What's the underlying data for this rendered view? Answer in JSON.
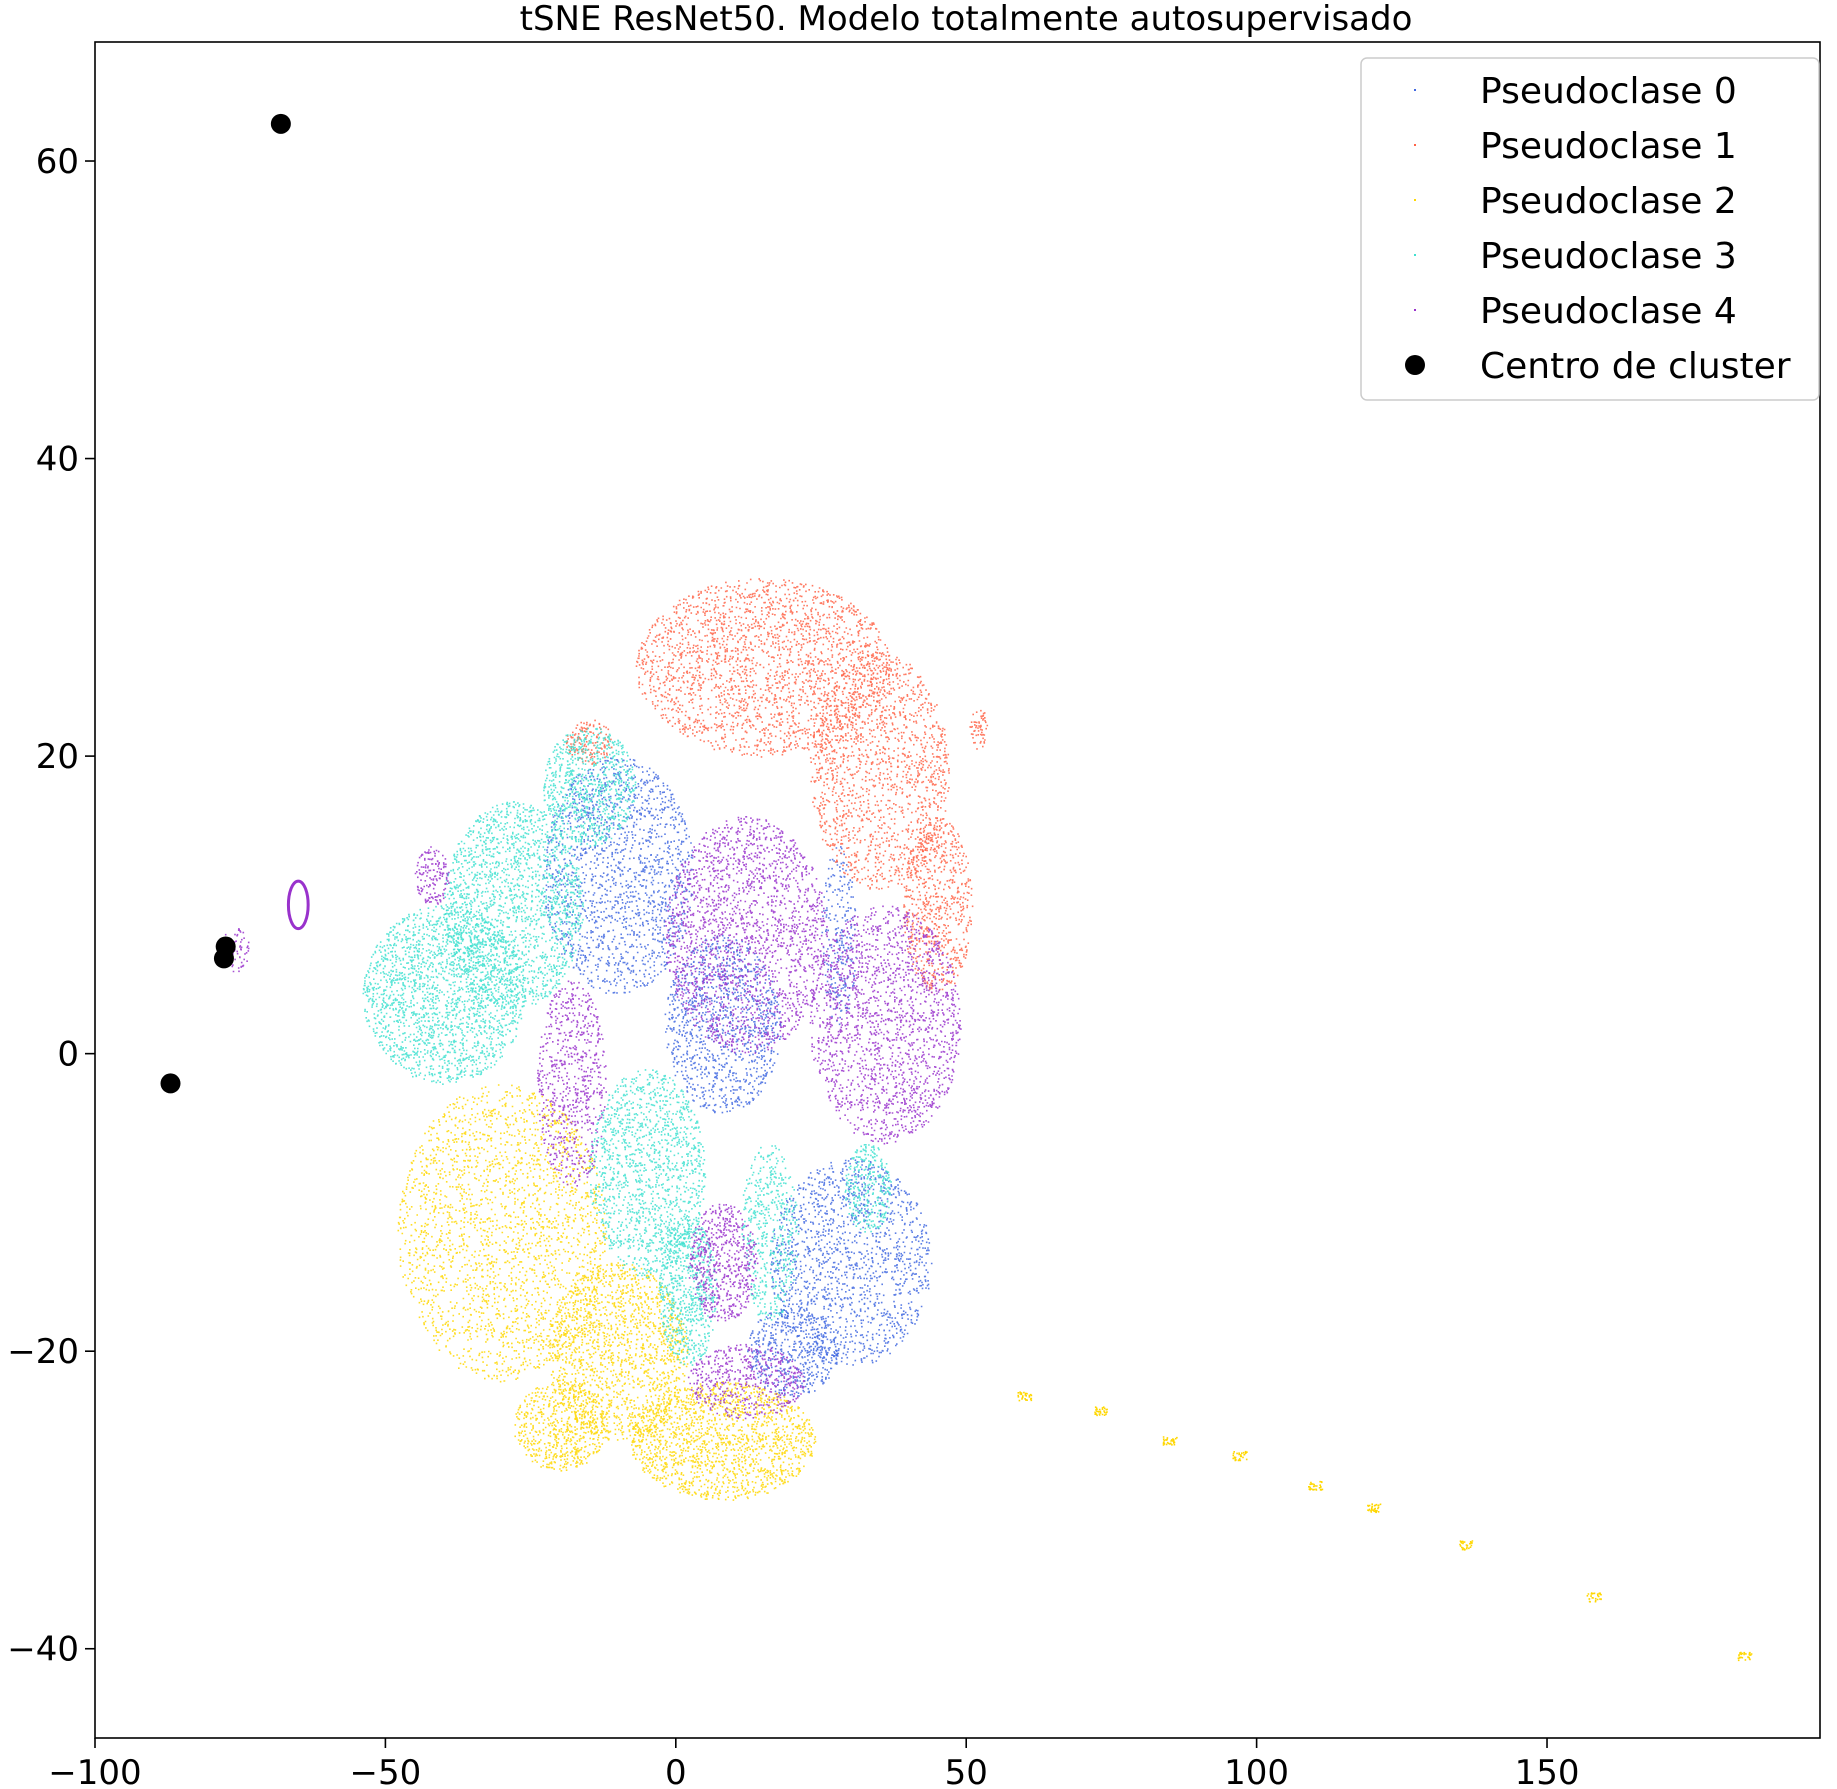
{
  "chart_data": {
    "type": "scatter",
    "title": "tSNE ResNet50. Modelo totalmente autosupervisado",
    "xlabel": "",
    "ylabel": "",
    "xlim": [
      -100,
      197
    ],
    "ylim": [
      -46,
      68
    ],
    "x_ticks": [
      {
        "value": -100,
        "label": "−100"
      },
      {
        "value": -50,
        "label": "−50"
      },
      {
        "value": 0,
        "label": "0"
      },
      {
        "value": 50,
        "label": "50"
      },
      {
        "value": 100,
        "label": "100"
      },
      {
        "value": 150,
        "label": "150"
      }
    ],
    "y_ticks": [
      {
        "value": -40,
        "label": "−40"
      },
      {
        "value": -20,
        "label": "−20"
      },
      {
        "value": 0,
        "label": "0"
      },
      {
        "value": 20,
        "label": "20"
      },
      {
        "value": 40,
        "label": "40"
      },
      {
        "value": 60,
        "label": "60"
      }
    ],
    "grid": false,
    "legend_position": "top-right",
    "series": [
      {
        "name": "Pseudoclase 0",
        "color": "#4169e1",
        "regions": [
          {
            "cx": -10,
            "cy": 12,
            "rx": 13,
            "ry": 8,
            "density": 1600
          },
          {
            "cx": 8,
            "cy": 2,
            "rx": 10,
            "ry": 6,
            "density": 1100
          },
          {
            "cx": 30,
            "cy": -14,
            "rx": 14,
            "ry": 7,
            "density": 1500
          },
          {
            "cx": 20,
            "cy": -20,
            "rx": 8,
            "ry": 3,
            "density": 500
          },
          {
            "cx": 28,
            "cy": 8,
            "rx": 3,
            "ry": 6,
            "density": 250
          }
        ]
      },
      {
        "name": "Pseudoclase 1",
        "color": "#ff6347",
        "regions": [
          {
            "cx": 15,
            "cy": 26,
            "rx": 22,
            "ry": 6,
            "density": 2200
          },
          {
            "cx": 35,
            "cy": 19,
            "rx": 12,
            "ry": 8,
            "density": 1500
          },
          {
            "cx": 45,
            "cy": 10,
            "rx": 6,
            "ry": 6,
            "density": 700
          },
          {
            "cx": -15,
            "cy": 21,
            "rx": 4,
            "ry": 1.5,
            "density": 150
          },
          {
            "cx": 52,
            "cy": 22,
            "rx": 1.5,
            "ry": 1.5,
            "density": 60
          }
        ]
      },
      {
        "name": "Pseudoclase 2",
        "color": "#ffd700",
        "regions": [
          {
            "cx": -30,
            "cy": -12,
            "rx": 18,
            "ry": 10,
            "density": 2200
          },
          {
            "cx": -10,
            "cy": -20,
            "rx": 12,
            "ry": 6,
            "density": 1500
          },
          {
            "cx": 8,
            "cy": -26,
            "rx": 16,
            "ry": 4,
            "density": 1600
          },
          {
            "cx": -20,
            "cy": -25,
            "rx": 8,
            "ry": 3,
            "density": 600
          }
        ],
        "trail": [
          {
            "x": 60,
            "y": -23
          },
          {
            "x": 73,
            "y": -24
          },
          {
            "x": 85,
            "y": -26
          },
          {
            "x": 97,
            "y": -27
          },
          {
            "x": 110,
            "y": -29
          },
          {
            "x": 120,
            "y": -30.5
          },
          {
            "x": 136,
            "y": -33
          },
          {
            "x": 158,
            "y": -36.5
          },
          {
            "x": 184,
            "y": -40.5
          }
        ]
      },
      {
        "name": "Pseudoclase 3",
        "color": "#40e0d0",
        "regions": [
          {
            "cx": -40,
            "cy": 4,
            "rx": 14,
            "ry": 6,
            "density": 2000
          },
          {
            "cx": -28,
            "cy": 10,
            "rx": 12,
            "ry": 7,
            "density": 1800
          },
          {
            "cx": -15,
            "cy": 18,
            "rx": 8,
            "ry": 4,
            "density": 800
          },
          {
            "cx": -5,
            "cy": -8,
            "rx": 10,
            "ry": 7,
            "density": 1400
          },
          {
            "cx": 2,
            "cy": -16,
            "rx": 5,
            "ry": 5,
            "density": 700
          },
          {
            "cx": 16,
            "cy": -12,
            "rx": 5,
            "ry": 6,
            "density": 500
          },
          {
            "cx": 33,
            "cy": -9,
            "rx": 4,
            "ry": 3,
            "density": 300
          }
        ]
      },
      {
        "name": "Pseudoclase 4",
        "color": "#9932cc",
        "regions": [
          {
            "cx": 12,
            "cy": 8,
            "rx": 14,
            "ry": 8,
            "density": 2000
          },
          {
            "cx": 36,
            "cy": 2,
            "rx": 13,
            "ry": 8,
            "density": 1800
          },
          {
            "cx": -18,
            "cy": -2,
            "rx": 6,
            "ry": 7,
            "density": 700
          },
          {
            "cx": 8,
            "cy": -14,
            "rx": 6,
            "ry": 4,
            "density": 600
          },
          {
            "cx": 12,
            "cy": -22,
            "rx": 10,
            "ry": 2.5,
            "density": 500
          },
          {
            "cx": -42,
            "cy": 12,
            "rx": 3,
            "ry": 2,
            "density": 150
          },
          {
            "cx": -76,
            "cy": 7,
            "rx": 2.5,
            "ry": 1.5,
            "density": 80
          }
        ],
        "ring": {
          "cx": -65,
          "cy": 10,
          "rx": 1.7,
          "ry": 1.6
        }
      },
      {
        "name": "Centro de cluster",
        "color": "#000000",
        "points": [
          {
            "x": -68,
            "y": 62.5
          },
          {
            "x": -77.5,
            "y": 7.2
          },
          {
            "x": -77.8,
            "y": 6.4
          },
          {
            "x": -87,
            "y": -2
          }
        ]
      }
    ]
  }
}
